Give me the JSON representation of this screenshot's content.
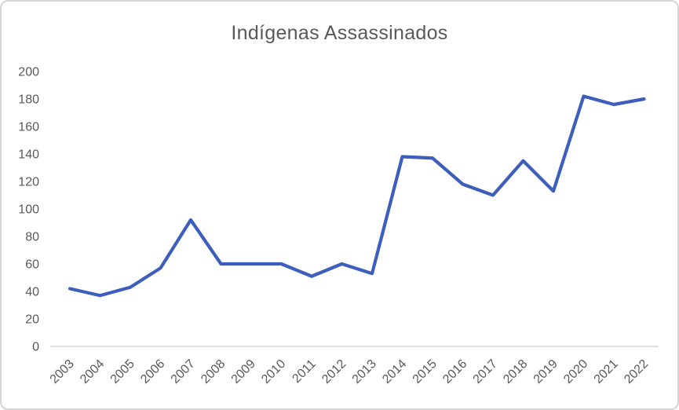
{
  "chart_data": {
    "type": "line",
    "title": "Indígenas Assassinados",
    "xlabel": "",
    "ylabel": "",
    "categories": [
      "2003",
      "2004",
      "2005",
      "2006",
      "2007",
      "2008",
      "2009",
      "2010",
      "2011",
      "2012",
      "2013",
      "2014",
      "2015",
      "2016",
      "2017",
      "2018",
      "2019",
      "2020",
      "2021",
      "2022"
    ],
    "series": [
      {
        "name": "Indígenas Assassinados",
        "values": [
          42,
          37,
          43,
          57,
          92,
          60,
          60,
          60,
          51,
          60,
          53,
          138,
          137,
          118,
          110,
          135,
          113,
          182,
          176,
          180
        ]
      }
    ],
    "ylim": [
      0,
      200
    ],
    "yticks": [
      0,
      20,
      40,
      60,
      80,
      100,
      120,
      140,
      160,
      180,
      200
    ],
    "x_label_rotation": -45,
    "grid": false,
    "legend_position": "none",
    "colors": {
      "line": "#3d5ebc",
      "axis_line": "#d9d9d9",
      "tick_text": "#595959",
      "title_text": "#595959",
      "background": "#ffffff",
      "frame_border": "#d6d6d6"
    }
  }
}
